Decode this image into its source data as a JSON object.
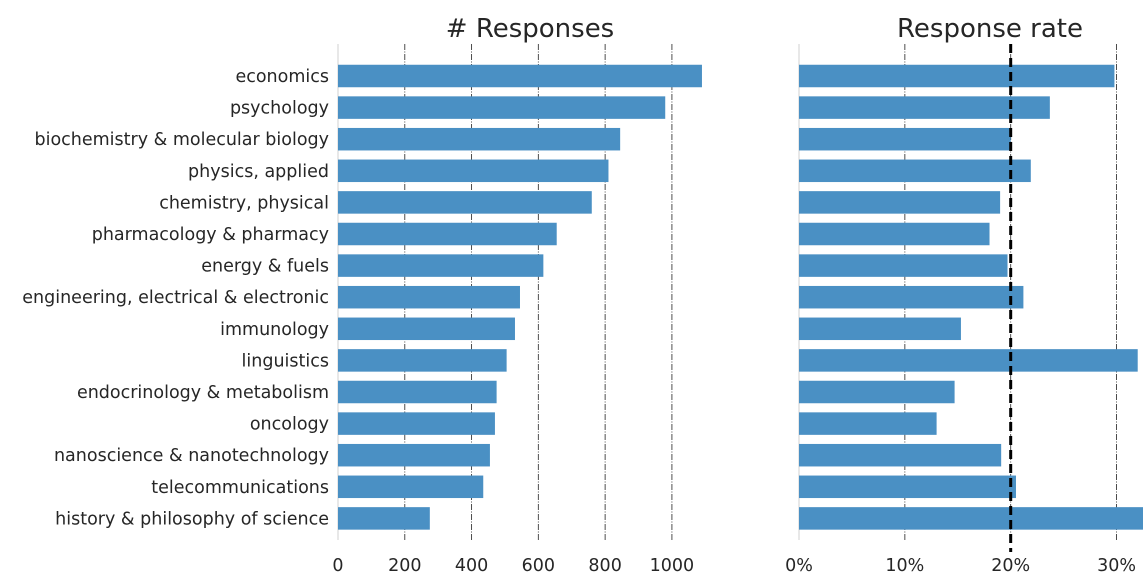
{
  "chart_data": [
    {
      "type": "bar",
      "orientation": "horizontal",
      "title": "# Responses",
      "categories": [
        "economics",
        "psychology",
        "biochemistry & molecular biology",
        "physics, applied",
        "chemistry, physical",
        "pharmacology & pharmacy",
        "energy & fuels",
        "engineering, electrical & electronic",
        "immunology",
        "linguistics",
        "endocrinology & metabolism",
        "oncology",
        "nanoscience & nanotechnology",
        "telecommunications",
        "history & philosophy of science"
      ],
      "values": [
        1090,
        980,
        845,
        810,
        760,
        655,
        615,
        545,
        530,
        505,
        475,
        470,
        455,
        435,
        275
      ],
      "xlim": [
        0,
        1150
      ],
      "xticks": [
        0,
        200,
        400,
        600,
        800,
        1000
      ],
      "xtick_labels": [
        "0",
        "200",
        "400",
        "600",
        "800",
        "1000"
      ],
      "grid": true,
      "color": "#4a90c4"
    },
    {
      "type": "bar",
      "orientation": "horizontal",
      "title": "Response rate",
      "categories": [
        "economics",
        "psychology",
        "biochemistry & molecular biology",
        "physics, applied",
        "chemistry, physical",
        "pharmacology & pharmacy",
        "energy & fuels",
        "engineering, electrical & electronic",
        "immunology",
        "linguistics",
        "endocrinology & metabolism",
        "oncology",
        "nanoscience & nanotechnology",
        "telecommunications",
        "history & philosophy of science"
      ],
      "values": [
        0.298,
        0.237,
        0.2,
        0.219,
        0.19,
        0.18,
        0.197,
        0.212,
        0.153,
        0.32,
        0.147,
        0.13,
        0.191,
        0.205,
        0.325
      ],
      "xlim": [
        0,
        0.325
      ],
      "xticks": [
        0,
        0.1,
        0.2,
        0.3
      ],
      "xtick_labels": [
        "0%",
        "10%",
        "20%",
        "30%"
      ],
      "reference_line": 0.2,
      "grid": true,
      "color": "#4a90c4"
    }
  ]
}
